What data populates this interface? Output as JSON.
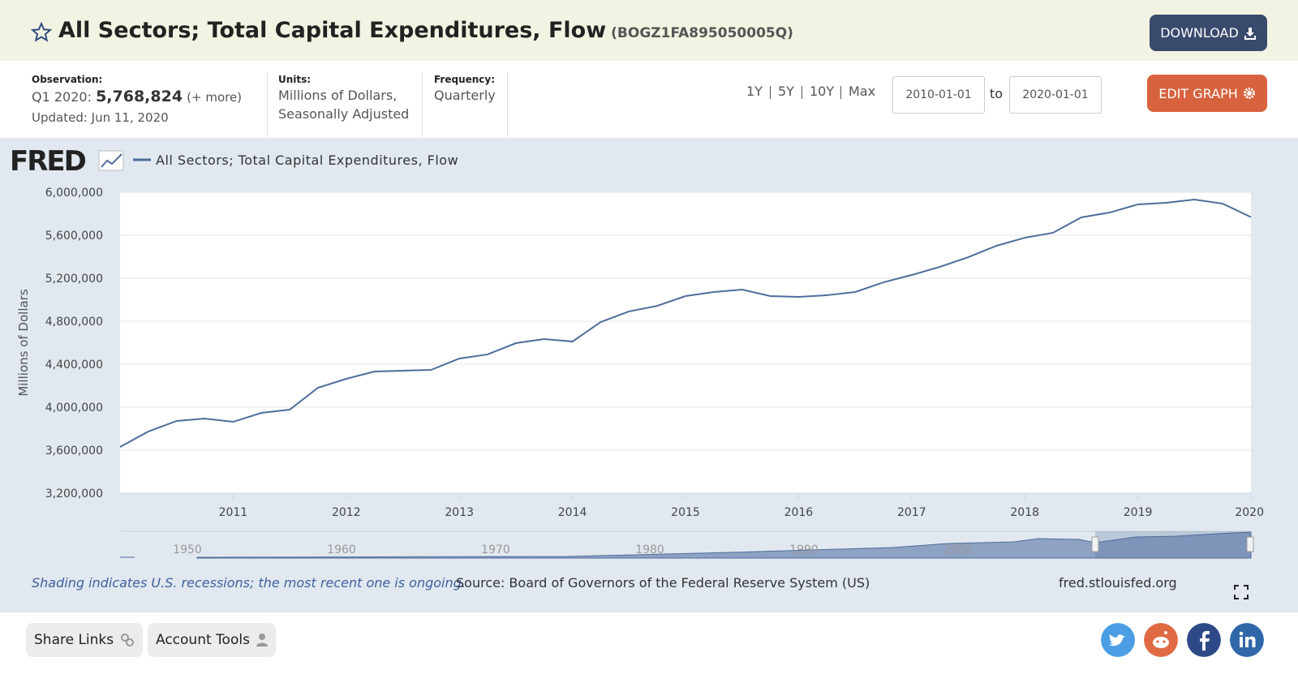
{
  "header": {
    "title": "All Sectors; Total Capital Expenditures, Flow",
    "series_id": "(BOGZ1FA895050005Q)",
    "download": "DOWNLOAD"
  },
  "info": {
    "observation_label": "Observation:",
    "period": "Q1 2020:",
    "value": "5,768,824",
    "more": "(+ more)",
    "updated": "Updated: Jun 11, 2020",
    "units_label": "Units:",
    "units": [
      "Millions of Dollars,",
      "Seasonally Adjusted"
    ],
    "frequency_label": "Frequency:",
    "frequency": "Quarterly",
    "ranges": [
      "1Y",
      "5Y",
      "10Y",
      "Max"
    ],
    "start": "2010-01-01",
    "to": "to",
    "end": "2020-01-01",
    "edit": "EDIT GRAPH"
  },
  "logo": "FRED",
  "chart_data": {
    "type": "line",
    "y_label": "Millions of Dollars",
    "x": [
      2010,
      2010.25,
      2010.5,
      2010.75,
      2011,
      2011.25,
      2011.5,
      2011.75,
      2012,
      2012.25,
      2012.5,
      2012.75,
      2013,
      2013.25,
      2013.5,
      2013.75,
      2014,
      2014.25,
      2014.5,
      2014.75,
      2015,
      2015.25,
      2015.5,
      2015.75,
      2016,
      2016.25,
      2016.5,
      2016.75,
      2017,
      2017.25,
      2017.5,
      2017.75,
      2018,
      2018.25,
      2018.5,
      2018.75,
      2019,
      2019.25,
      2019.5,
      2019.75,
      2020
    ],
    "series": [
      {
        "name": "All Sectors; Total Capital Expenditures, Flow",
        "color": "#4e6d9c",
        "values": [
          3630000,
          3774000,
          3872000,
          3894000,
          3864000,
          3947000,
          3977000,
          4181000,
          4264000,
          4332000,
          4340000,
          4347000,
          4453000,
          4491000,
          4596000,
          4634000,
          4611000,
          4792000,
          4891000,
          4943000,
          5034000,
          5072000,
          5094000,
          5034000,
          5026000,
          5042000,
          5072000,
          5162000,
          5230000,
          5306000,
          5396000,
          5502000,
          5577000,
          5623000,
          5766000,
          5811000,
          5887000,
          5902000,
          5932000,
          5894000,
          5768824
        ]
      }
    ],
    "xlim": [
      2010,
      2020
    ],
    "xticks": [
      2011,
      2012,
      2013,
      2014,
      2015,
      2016,
      2017,
      2018,
      2019,
      2020
    ],
    "ylim": [
      3200000,
      6000000
    ],
    "yticks": [
      {
        "value": 3200000,
        "label": "3,200,000"
      },
      {
        "value": 3600000,
        "label": "3,600,000"
      },
      {
        "value": 4000000,
        "label": "4,000,000"
      },
      {
        "value": 4400000,
        "label": "4,400,000"
      },
      {
        "value": 4800000,
        "label": "4,800,000"
      },
      {
        "value": 5200000,
        "label": "5,200,000"
      },
      {
        "value": 5600000,
        "label": "5,600,000"
      },
      {
        "value": 6000000,
        "label": "6,000,000"
      }
    ],
    "grid": true
  },
  "navigator": {
    "labels": [
      "1950",
      "1960",
      "1970",
      "1980",
      "1990",
      "2000"
    ]
  },
  "notes": {
    "shading": "Shading indicates U.S. recessions; the most recent one is ongoing.",
    "source": "Source: Board of Governors of the Federal Reserve System (US)",
    "site": "fred.stlouisfed.org"
  },
  "footer": {
    "share": "Share Links",
    "account": "Account Tools"
  }
}
